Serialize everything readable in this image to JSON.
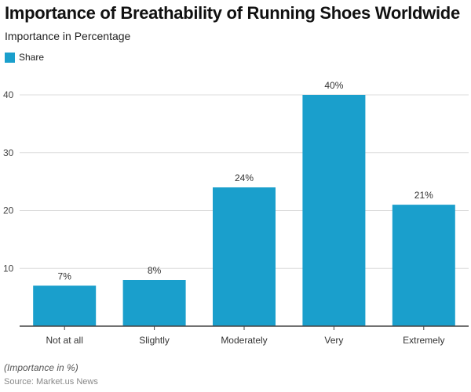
{
  "chart_data": {
    "type": "bar",
    "title": "Importance of Breathability of Running Shoes Worldwide",
    "subtitle": "Importance in Percentage",
    "legend": {
      "position": "top-left",
      "entries": [
        "Share"
      ]
    },
    "categories": [
      "Not at all",
      "Slightly",
      "Moderately",
      "Very",
      "Extremely"
    ],
    "series": [
      {
        "name": "Share",
        "values": [
          7,
          8,
          24,
          40,
          21
        ],
        "color": "#1a9fcc"
      }
    ],
    "data_labels": [
      "7%",
      "8%",
      "24%",
      "40%",
      "21%"
    ],
    "yticks": [
      10,
      20,
      30,
      40
    ],
    "ylim": [
      0,
      40
    ],
    "grid": true,
    "note": "(Importance in %)",
    "source": "Source: Market.us News"
  }
}
